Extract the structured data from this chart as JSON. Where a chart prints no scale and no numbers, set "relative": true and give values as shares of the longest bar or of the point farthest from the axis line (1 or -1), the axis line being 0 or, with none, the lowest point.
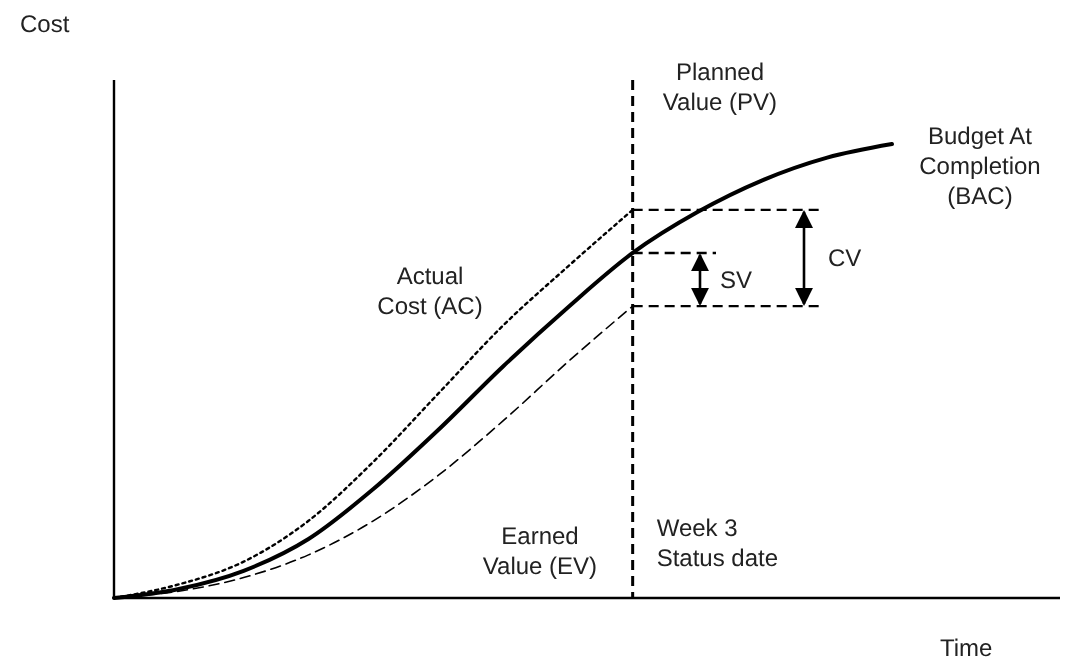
{
  "chart_data": {
    "type": "line",
    "relative": true,
    "xlabel": "Time",
    "ylabel": "Cost",
    "categories": [
      null,
      null,
      null,
      null,
      null,
      null,
      null,
      null,
      null,
      null,
      null,
      null,
      null
    ],
    "series": [
      {
        "name": "Planned Value (PV)",
        "color": "#000000",
        "line_style": "solid",
        "values": [
          0,
          0.02,
          0.06,
          0.13,
          0.24,
          0.37,
          0.51,
          0.64,
          0.76,
          0.85,
          0.92,
          0.97,
          1
        ]
      },
      {
        "name": "Actual Cost (AC)",
        "color": "#000000",
        "line_style": "dotted",
        "values": [
          0,
          0.03,
          0.08,
          0.17,
          0.3,
          0.45,
          0.6,
          0.73,
          0.855,
          null,
          null,
          null,
          null
        ]
      },
      {
        "name": "Earned Value (EV)",
        "color": "#000000",
        "line_style": "dashed",
        "values": [
          0,
          0.015,
          0.045,
          0.095,
          0.17,
          0.27,
          0.39,
          0.52,
          0.643,
          null,
          null,
          null,
          null
        ]
      }
    ],
    "annotations": [
      "Budget At Completion (BAC)",
      "SV",
      "CV",
      "Week 3 Status date"
    ]
  }
}
